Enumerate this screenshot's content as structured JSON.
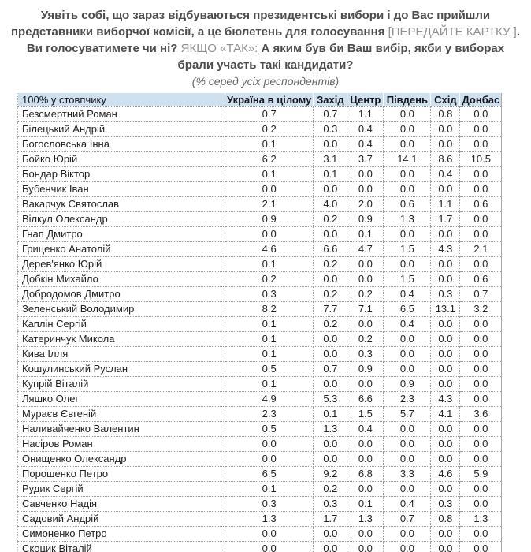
{
  "question": {
    "segments": [
      {
        "style": "bold",
        "text": "Уявіть собі, що зараз відбуваються президентські вибори і до Вас прийшли представники виборчої комісії, а це бюлетень для голосування "
      },
      {
        "style": "light",
        "text": "[ПЕРЕДАЙТЕ КАРТКУ ]"
      },
      {
        "style": "bold",
        "text": ". Ви голосуватимете чи ні? "
      },
      {
        "style": "light",
        "text": "ЯКЩО «ТАК»: "
      },
      {
        "style": "bold",
        "text": "А яким був би Ваш вибір, якби у виборах брали участь такі кандидати?"
      }
    ]
  },
  "subtitle": "(% серед усіх респондентів)",
  "colors": {
    "header_bg": "#cfe0ef",
    "title_text": "#4c4c4c",
    "title_light": "#8f8f8f",
    "dotted_border": "#999999"
  },
  "table": {
    "headers": [
      "100% у стовпчику",
      "Україна в цілому",
      "Захід",
      "Центр",
      "Південь",
      "Схід",
      "Донбас"
    ],
    "rows": [
      {
        "name": "Безсмертний Роман",
        "values": [
          "0.7",
          "0.7",
          "1.1",
          "0.0",
          "0.8",
          "0.0"
        ]
      },
      {
        "name": "Білецький Андрій",
        "values": [
          "0.2",
          "0.3",
          "0.4",
          "0.0",
          "0.0",
          "0.0"
        ]
      },
      {
        "name": "Богословська Інна",
        "values": [
          "0.1",
          "0.0",
          "0.4",
          "0.0",
          "0.0",
          "0.0"
        ]
      },
      {
        "name": "Бойко Юрій",
        "values": [
          "6.2",
          "3.1",
          "3.7",
          "14.1",
          "8.6",
          "10.5"
        ]
      },
      {
        "name": "Бондар Віктор",
        "values": [
          "0.1",
          "0.1",
          "0.0",
          "0.0",
          "0.4",
          "0.0"
        ]
      },
      {
        "name": "Бубенчик Іван",
        "values": [
          "0.0",
          "0.0",
          "0.0",
          "0.0",
          "0.0",
          "0.0"
        ]
      },
      {
        "name": "Вакарчук Святослав",
        "values": [
          "2.1",
          "4.0",
          "2.0",
          "0.6",
          "1.1",
          "0.6"
        ]
      },
      {
        "name": "Вілкул Олександр",
        "values": [
          "0.9",
          "0.2",
          "0.9",
          "1.3",
          "1.7",
          "0.0"
        ]
      },
      {
        "name": "Гнап Дмитро",
        "values": [
          "0.0",
          "0.0",
          "0.1",
          "0.0",
          "0.0",
          "0.0"
        ]
      },
      {
        "name": "Гриценко Анатолій",
        "values": [
          "4.6",
          "6.6",
          "4.7",
          "1.5",
          "4.3",
          "2.1"
        ]
      },
      {
        "name": "Дерев'янко Юрій",
        "values": [
          "0.1",
          "0.2",
          "0.0",
          "0.0",
          "0.0",
          "0.0"
        ]
      },
      {
        "name": "Добкін Михайло",
        "values": [
          "0.2",
          "0.0",
          "0.0",
          "1.5",
          "0.0",
          "0.6"
        ]
      },
      {
        "name": "Добродомов Дмитро",
        "values": [
          "0.3",
          "0.2",
          "0.2",
          "0.4",
          "0.3",
          "0.7"
        ]
      },
      {
        "name": "Зеленський Володимир",
        "values": [
          "8.2",
          "7.7",
          "7.1",
          "6.5",
          "13.1",
          "3.2"
        ]
      },
      {
        "name": "Каплін Сергій",
        "values": [
          "0.1",
          "0.2",
          "0.0",
          "0.4",
          "0.0",
          "0.0"
        ]
      },
      {
        "name": "Катеринчук Микола",
        "values": [
          "0.1",
          "0.0",
          "0.2",
          "0.0",
          "0.0",
          "0.0"
        ]
      },
      {
        "name": "Кива Ілля",
        "values": [
          "0.1",
          "0.0",
          "0.3",
          "0.0",
          "0.0",
          "0.0"
        ]
      },
      {
        "name": "Кошулинський Руслан",
        "values": [
          "0.5",
          "0.7",
          "0.9",
          "0.0",
          "0.0",
          "0.0"
        ]
      },
      {
        "name": "Купрій Віталій",
        "values": [
          "0.1",
          "0.0",
          "0.0",
          "0.9",
          "0.0",
          "0.0"
        ]
      },
      {
        "name": "Ляшко Олег",
        "values": [
          "4.9",
          "5.3",
          "6.6",
          "2.3",
          "4.3",
          "0.0"
        ]
      },
      {
        "name": "Мураєв Євгеній",
        "values": [
          "2.3",
          "0.1",
          "1.5",
          "5.7",
          "4.1",
          "3.6"
        ]
      },
      {
        "name": "Наливайченко Валентин",
        "values": [
          "0.5",
          "1.3",
          "0.4",
          "0.0",
          "0.0",
          "0.0"
        ]
      },
      {
        "name": "Насіров Роман",
        "values": [
          "0.0",
          "0.0",
          "0.0",
          "0.0",
          "0.0",
          "0.0"
        ]
      },
      {
        "name": "Онищенко Олександр",
        "values": [
          "0.0",
          "0.0",
          "0.0",
          "0.0",
          "0.0",
          "0.0"
        ]
      },
      {
        "name": "Порошенко Петро",
        "values": [
          "6.5",
          "9.2",
          "6.8",
          "3.3",
          "4.6",
          "5.9"
        ]
      },
      {
        "name": "Рудик Сергій",
        "values": [
          "0.1",
          "0.2",
          "0.0",
          "0.0",
          "0.0",
          "0.0"
        ]
      },
      {
        "name": "Савченко Надія",
        "values": [
          "0.3",
          "0.3",
          "0.1",
          "0.4",
          "0.3",
          "0.0"
        ]
      },
      {
        "name": "Садовий Андрій",
        "values": [
          "1.3",
          "1.7",
          "1.3",
          "0.7",
          "0.8",
          "1.3"
        ]
      },
      {
        "name": "Симоненко Петро",
        "values": [
          "0.0",
          "0.0",
          "0.0",
          "0.0",
          "0.0",
          "0.0"
        ]
      },
      {
        "name": "Скоцик Віталій",
        "values": [
          "0.0",
          "0.0",
          "0.0",
          "0.0",
          "0.0",
          "0.0"
        ]
      }
    ]
  }
}
